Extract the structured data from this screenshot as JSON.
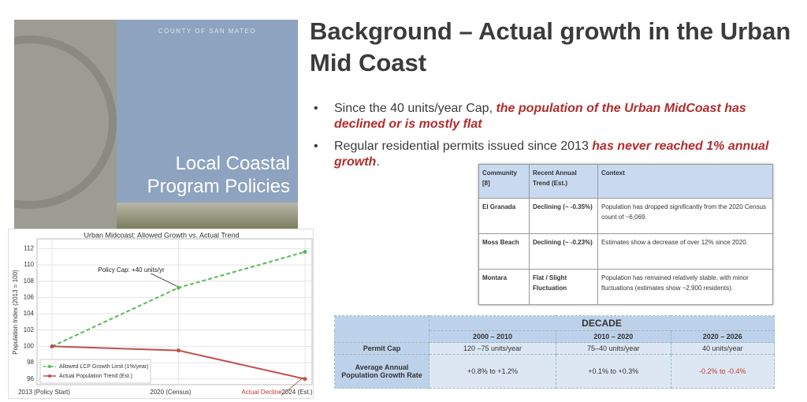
{
  "slide": {
    "title": "Background – Actual growth in the Urban Mid Coast",
    "bullets": [
      [
        {
          "text": "Since the 40 units/year Cap, ",
          "emphasis": false
        },
        {
          "text": "the population of the Urban MidCoast has declined or is mostly flat",
          "emphasis": true
        }
      ],
      [
        {
          "text": "Regular residential permits issued since 2013 ",
          "emphasis": false
        },
        {
          "text": "has never reached 1% annual growth",
          "emphasis": true
        },
        {
          "text": ".",
          "emphasis": false
        }
      ]
    ]
  },
  "cover": {
    "agency": "COUNTY OF SAN MATEO",
    "title_lines": [
      "Local Coastal",
      "Program Policies"
    ]
  },
  "chart_data": {
    "type": "line",
    "title": "Urban Midcoast: Allowed Growth vs. Actual Trend",
    "y_label": "Population Index (2013 = 100)",
    "categories": [
      "2013 (Policy Start)",
      "2020 (Census)",
      "2024 (Est.)"
    ],
    "series": [
      {
        "name": "Allowed LCP Growth Limit (1%/year)",
        "color": "#5cb85c",
        "dashed": true,
        "values": [
          100,
          107.2,
          111.6
        ]
      },
      {
        "name": "Actual Population Trend (Est.)",
        "color": "#c0504d",
        "dashed": false,
        "values": [
          100,
          99.5,
          96
        ]
      }
    ],
    "ylim": [
      95.3,
      113.2
    ],
    "yticks": [
      96,
      98,
      100,
      102,
      104,
      106,
      108,
      110,
      112
    ],
    "grid": true,
    "legend": "lower-left",
    "annotations": [
      {
        "text": "Policy Cap: +40 units/yr",
        "series": 0,
        "point": 1,
        "color": "#222"
      },
      {
        "text": "Actual Decline",
        "series": 1,
        "point": 2,
        "color": "#c0392b"
      }
    ]
  },
  "community_table": {
    "header": [
      "Community [8]",
      "Recent Annual Trend (Est.)",
      "Context"
    ],
    "rows": [
      [
        "El Granada",
        "Declining (~ -0.35%)",
        "Population has dropped significantly from the 2020 Census count of ~6,069."
      ],
      [
        "Moss Beach",
        "Declining (~ -0.23%)",
        "Estimates show a decrease of over 12% since 2020."
      ],
      [
        "Montara",
        "Flat / Slight Fluctuation",
        "Population has remained relatively stable, with minor fluctuations (estimates show ~2,900 residents)."
      ]
    ]
  },
  "decade_table": {
    "group_header": "DECADE",
    "columns": [
      "2000 – 2010",
      "2010 – 2020",
      "2020 – 2026"
    ],
    "rows": [
      [
        "Permit Cap",
        "120 –75 units/year",
        "75–40 units/year",
        "40 units/year"
      ],
      [
        "Average Annual Population Growth Rate",
        "+0.8% to +1.2%",
        "+0.1% to +0.3%",
        "-0.2% to -0.4%"
      ]
    ]
  }
}
